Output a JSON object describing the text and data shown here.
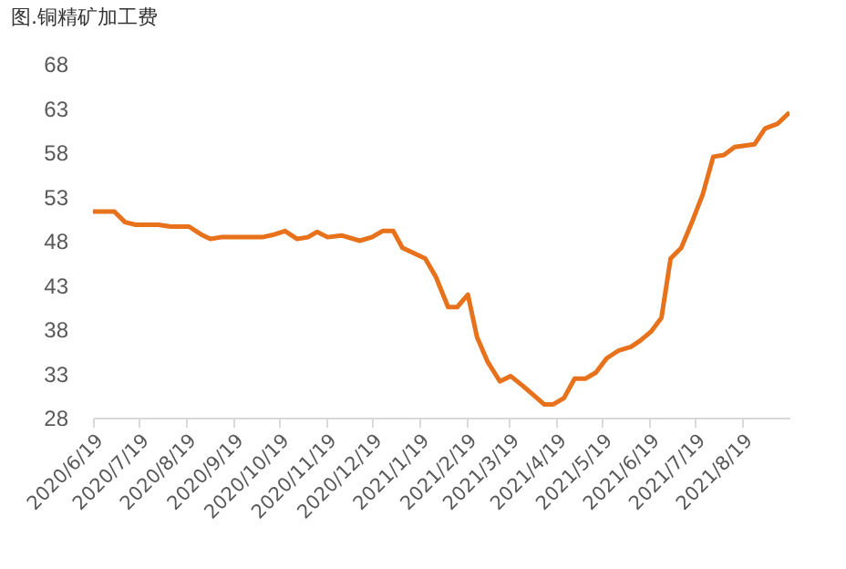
{
  "chart_data": {
    "type": "line",
    "title": "图.铜精矿加工费",
    "x": [
      "2020-06-19",
      "2020-07-03",
      "2020-07-10",
      "2020-07-17",
      "2020-08-01",
      "2020-08-09",
      "2020-08-21",
      "2020-08-29",
      "2020-09-04",
      "2020-09-11",
      "2020-10-08",
      "2020-10-16",
      "2020-10-23",
      "2020-10-31",
      "2020-11-07",
      "2020-11-13",
      "2020-11-20",
      "2020-11-29",
      "2020-12-11",
      "2020-12-19",
      "2020-12-26",
      "2021-01-02",
      "2021-01-08",
      "2021-01-23",
      "2021-01-30",
      "2021-02-07",
      "2021-02-13",
      "2021-02-20",
      "2021-02-26",
      "2021-03-05",
      "2021-03-13",
      "2021-03-20",
      "2021-03-28",
      "2021-04-05",
      "2021-04-11",
      "2021-04-17",
      "2021-04-24",
      "2021-05-01",
      "2021-05-08",
      "2021-05-15",
      "2021-05-22",
      "2021-05-30",
      "2021-06-07",
      "2021-06-13",
      "2021-06-20",
      "2021-06-27",
      "2021-07-03",
      "2021-07-10",
      "2021-07-17",
      "2021-07-24",
      "2021-07-31",
      "2021-08-07",
      "2021-08-14",
      "2021-08-27",
      "2021-09-03",
      "2021-09-11",
      "2021-09-19"
    ],
    "series": [
      {
        "color": "#e8711b",
        "values": [
          51.3,
          51.3,
          50.1,
          49.8,
          49.8,
          49.6,
          49.6,
          48.7,
          48.2,
          48.4,
          48.4,
          48.7,
          49.1,
          48.2,
          48.4,
          49.0,
          48.4,
          48.6,
          48.0,
          48.4,
          49.1,
          49.1,
          47.2,
          46.0,
          43.9,
          40.5,
          40.5,
          41.9,
          37.1,
          34.3,
          32.1,
          32.7,
          31.6,
          30.4,
          29.5,
          29.5,
          30.2,
          32.4,
          32.4,
          33.1,
          34.7,
          35.6,
          36.0,
          36.7,
          37.7,
          39.3,
          46.0,
          47.2,
          50.1,
          53.2,
          57.5,
          57.7,
          58.6,
          58.9,
          60.7,
          61.2,
          62.5
        ]
      }
    ],
    "xlim": [
      "2020-06-19",
      "2021-09-19"
    ],
    "xticks": [
      {
        "value": "2020-06-19",
        "label": "2020/6/19"
      },
      {
        "value": "2020-07-19",
        "label": "2020/7/19"
      },
      {
        "value": "2020-08-19",
        "label": "2020/8/19"
      },
      {
        "value": "2020-09-19",
        "label": "2020/9/19"
      },
      {
        "value": "2020-10-19",
        "label": "2020/10/19"
      },
      {
        "value": "2020-11-19",
        "label": "2020/11/19"
      },
      {
        "value": "2020-12-19",
        "label": "2020/12/19"
      },
      {
        "value": "2021-01-19",
        "label": "2021/1/19"
      },
      {
        "value": "2021-02-19",
        "label": "2021/2/19"
      },
      {
        "value": "2021-03-19",
        "label": "2021/3/19"
      },
      {
        "value": "2021-04-19",
        "label": "2021/4/19"
      },
      {
        "value": "2021-05-19",
        "label": "2021/5/19"
      },
      {
        "value": "2021-06-19",
        "label": "2021/6/19"
      },
      {
        "value": "2021-07-19",
        "label": "2021/7/19"
      },
      {
        "value": "2021-08-19",
        "label": "2021/8/19"
      }
    ],
    "ylim": [
      28,
      68
    ],
    "yticks": [
      28,
      33,
      38,
      43,
      48,
      53,
      58,
      63,
      68
    ],
    "marker": "none",
    "line_style": "solid"
  }
}
